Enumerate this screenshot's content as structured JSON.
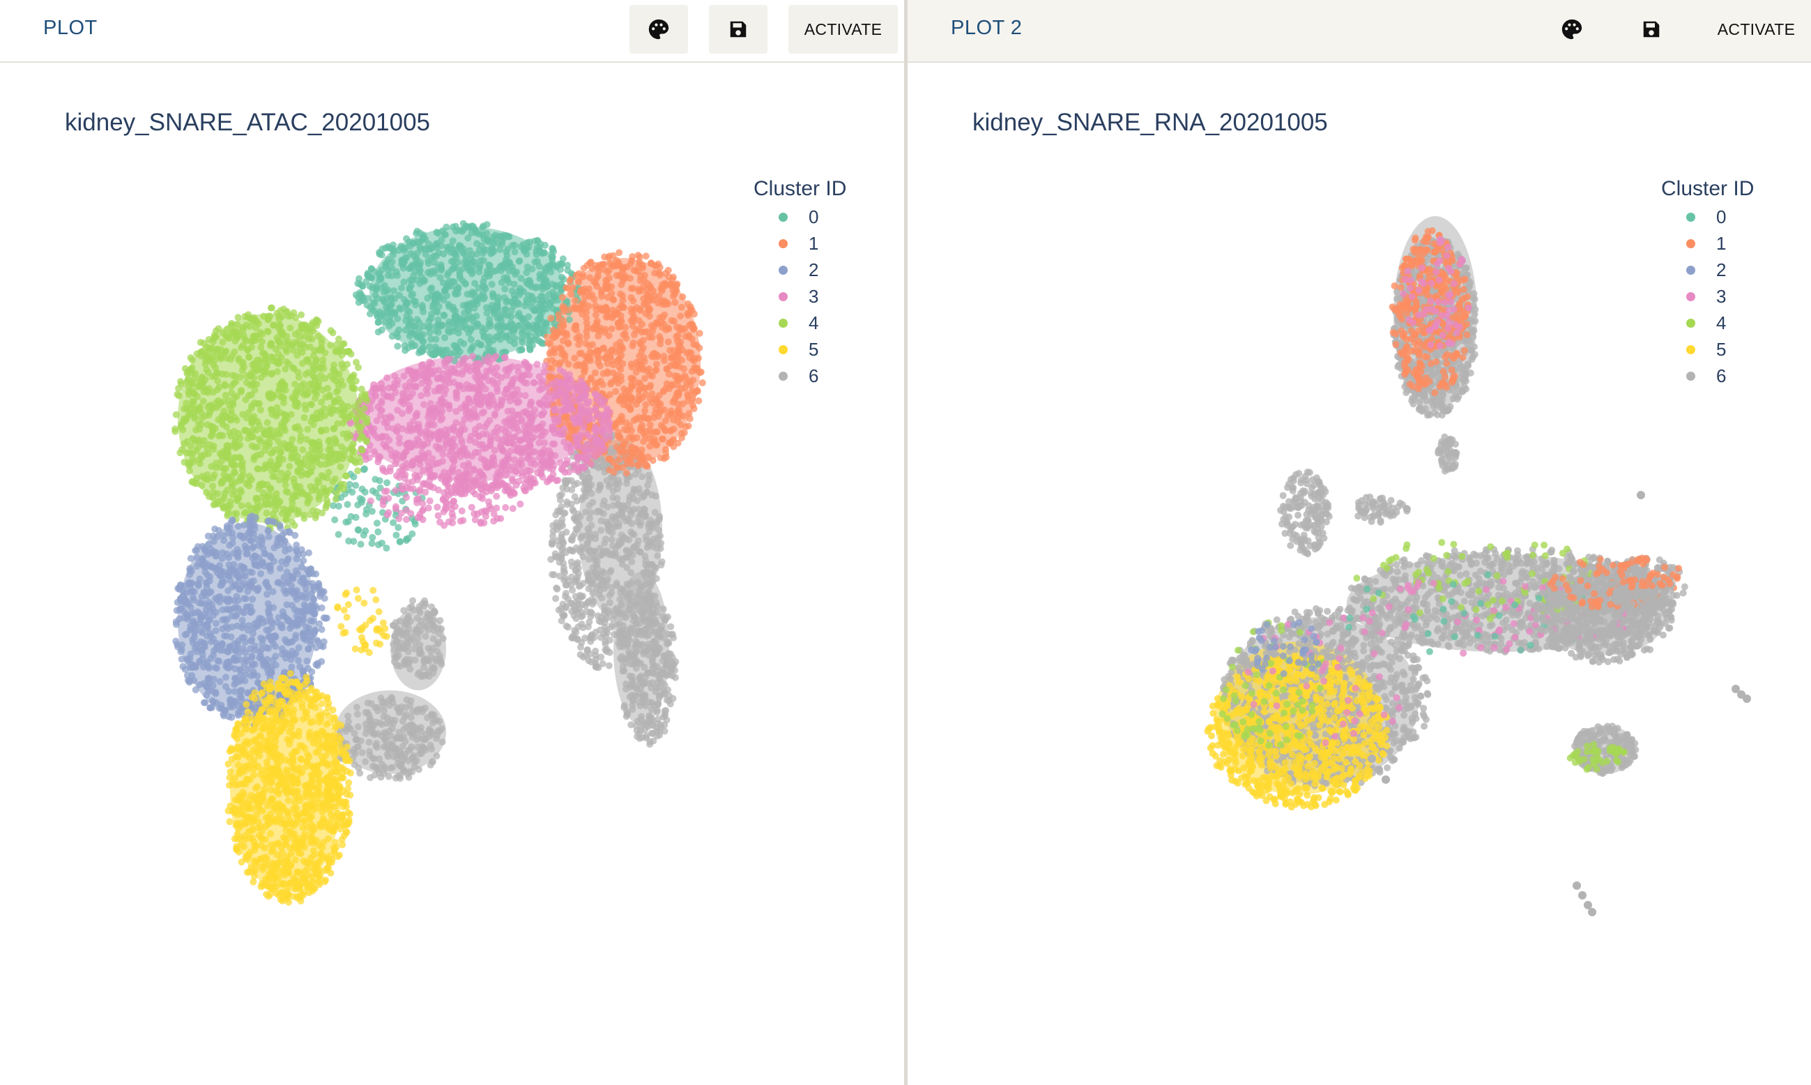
{
  "panels": [
    {
      "tab_title": "PLOT",
      "plot_title": "kidney_SNARE_ATAC_20201005",
      "activate_label": "ACTIVATE",
      "palette_icon": "palette-icon",
      "save_icon": "save-icon",
      "legend_title": "Cluster ID",
      "legend": [
        "0",
        "1",
        "2",
        "3",
        "4",
        "5",
        "6"
      ]
    },
    {
      "tab_title": "PLOT 2",
      "plot_title": "kidney_SNARE_RNA_20201005",
      "activate_label": "ACTIVATE",
      "palette_icon": "palette-icon",
      "save_icon": "save-icon",
      "legend_title": "Cluster ID",
      "legend": [
        "0",
        "1",
        "2",
        "3",
        "4",
        "5",
        "6"
      ]
    }
  ],
  "cluster_colors": [
    "#66c2a5",
    "#fc8d62",
    "#8da0cb",
    "#e78ac3",
    "#a6d854",
    "#ffd92f",
    "#b3b3b3"
  ],
  "chart_data": [
    {
      "type": "scatter",
      "title": "kidney_SNARE_ATAC_20201005",
      "legend_title": "Cluster ID",
      "legend_position": "top-right",
      "series": [
        {
          "name": "0",
          "color": "#66c2a5"
        },
        {
          "name": "1",
          "color": "#fc8d62"
        },
        {
          "name": "2",
          "color": "#8da0cb"
        },
        {
          "name": "3",
          "color": "#e78ac3"
        },
        {
          "name": "4",
          "color": "#a6d854"
        },
        {
          "name": "5",
          "color": "#ffd92f"
        },
        {
          "name": "6",
          "color": "#b3b3b3"
        }
      ],
      "axes_visible": false,
      "grid": false
    },
    {
      "type": "scatter",
      "title": "kidney_SNARE_RNA_20201005",
      "legend_title": "Cluster ID",
      "legend_position": "top-right",
      "series": [
        {
          "name": "0",
          "color": "#66c2a5"
        },
        {
          "name": "1",
          "color": "#fc8d62"
        },
        {
          "name": "2",
          "color": "#8da0cb"
        },
        {
          "name": "3",
          "color": "#e78ac3"
        },
        {
          "name": "4",
          "color": "#a6d854"
        },
        {
          "name": "5",
          "color": "#ffd92f"
        },
        {
          "name": "6",
          "color": "#b3b3b3"
        }
      ],
      "axes_visible": false,
      "grid": false
    }
  ]
}
